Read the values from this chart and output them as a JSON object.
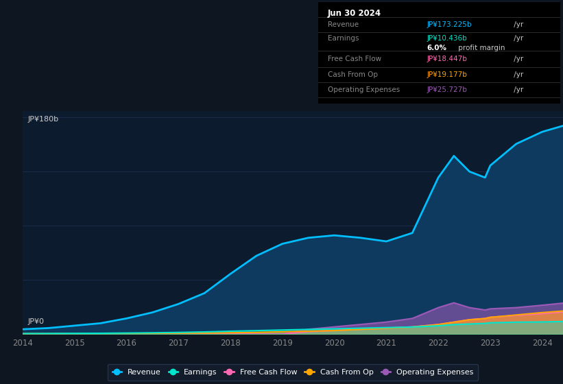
{
  "background_color": "#0e1621",
  "plot_bg_color": "#0d1b2e",
  "grid_color": "#1e3050",
  "title_box": {
    "date": "Jun 30 2024",
    "rows": [
      {
        "label": "Revenue",
        "value": "JP¥173.225b",
        "value_color": "#00bfff",
        "suffix": " /yr"
      },
      {
        "label": "Earnings",
        "value": "JP¥10.436b",
        "value_color": "#00e5cc",
        "suffix": " /yr"
      },
      {
        "label": "",
        "value": "6.0%",
        "value_color": "#ffffff",
        "suffix": " profit margin"
      },
      {
        "label": "Free Cash Flow",
        "value": "JP¥18.447b",
        "value_color": "#ff69b4",
        "suffix": " /yr"
      },
      {
        "label": "Cash From Op",
        "value": "JP¥19.177b",
        "value_color": "#ffa500",
        "suffix": " /yr"
      },
      {
        "label": "Operating Expenses",
        "value": "JP¥25.727b",
        "value_color": "#9b59b6",
        "suffix": " /yr"
      }
    ]
  },
  "years": [
    2014,
    2014.5,
    2015,
    2015.5,
    2016,
    2016.5,
    2017,
    2017.5,
    2018,
    2018.5,
    2019,
    2019.5,
    2020,
    2020.5,
    2021,
    2021.5,
    2022,
    2022.3,
    2022.6,
    2022.9,
    2023,
    2023.5,
    2024,
    2024.4
  ],
  "revenue": [
    4,
    5,
    7,
    9,
    13,
    18,
    25,
    34,
    50,
    65,
    75,
    80,
    82,
    80,
    77,
    84,
    130,
    148,
    135,
    130,
    140,
    158,
    168,
    173
  ],
  "earnings": [
    0.4,
    0.5,
    0.6,
    0.7,
    0.9,
    1.1,
    1.4,
    1.8,
    2.4,
    2.9,
    3.4,
    3.9,
    4.4,
    4.9,
    5.4,
    5.9,
    6.9,
    7.9,
    8.4,
    8.9,
    9.4,
    9.9,
    10.1,
    10.436
  ],
  "free_cash_flow": [
    0,
    0,
    0,
    0,
    0,
    0,
    0,
    0,
    0,
    0,
    0,
    2.0,
    3.0,
    4.0,
    5.0,
    6.0,
    8.0,
    10.0,
    12.0,
    13.0,
    14.0,
    15.5,
    17.0,
    18.447
  ],
  "cash_from_op": [
    0.4,
    0.4,
    0.5,
    0.5,
    0.6,
    0.7,
    0.8,
    0.9,
    1.1,
    1.4,
    1.9,
    2.4,
    2.9,
    3.9,
    4.9,
    5.9,
    7.9,
    9.9,
    11.9,
    12.9,
    13.9,
    15.9,
    17.9,
    19.177
  ],
  "operating_expenses": [
    0,
    0,
    0,
    0,
    0,
    0,
    0,
    0,
    0,
    0,
    0,
    4.0,
    6.0,
    8.0,
    10.0,
    13.0,
    22.0,
    26.0,
    22.0,
    20.0,
    21.0,
    22.0,
    24.0,
    25.727
  ],
  "revenue_color": "#00bfff",
  "earnings_color": "#00e5cc",
  "free_cash_flow_color": "#ff69b4",
  "cash_from_op_color": "#ffa500",
  "operating_expenses_color": "#9b59b6",
  "revenue_fill": "#0d3a5e",
  "ylabel_top": "JP¥180b",
  "ylabel_bottom": "JP¥0",
  "xticks": [
    2014,
    2015,
    2016,
    2017,
    2018,
    2019,
    2020,
    2021,
    2022,
    2023,
    2024
  ],
  "ylim": [
    0,
    185
  ],
  "legend": [
    {
      "label": "Revenue",
      "color": "#00bfff"
    },
    {
      "label": "Earnings",
      "color": "#00e5cc"
    },
    {
      "label": "Free Cash Flow",
      "color": "#ff69b4"
    },
    {
      "label": "Cash From Op",
      "color": "#ffa500"
    },
    {
      "label": "Operating Expenses",
      "color": "#9b59b6"
    }
  ]
}
